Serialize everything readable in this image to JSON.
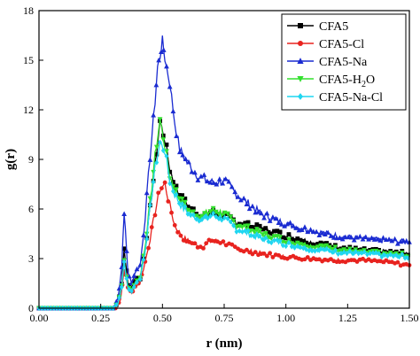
{
  "chart_data": {
    "type": "line",
    "title": "",
    "xlabel": "r (nm)",
    "ylabel": "g(r)",
    "xlim": [
      0,
      1.5
    ],
    "ylim": [
      0,
      18
    ],
    "xticks": [
      0.0,
      0.25,
      0.5,
      0.75,
      1.0,
      1.25,
      1.5
    ],
    "xtick_labels": [
      "0.00",
      "0.25",
      "0.50",
      "0.75",
      "1.00",
      "1.25",
      "1.50"
    ],
    "yticks": [
      0,
      3,
      6,
      9,
      12,
      15,
      18
    ],
    "ytick_labels": [
      "0",
      "3",
      "6",
      "9",
      "12",
      "15",
      "18"
    ],
    "grid": false,
    "legend_position": "top-right",
    "series": [
      {
        "name": "CFA5",
        "name_sub": "",
        "name_tail": "",
        "color": "#000000",
        "marker": "square",
        "points": [
          [
            0.0,
            0
          ],
          [
            0.3,
            0
          ],
          [
            0.32,
            0.3
          ],
          [
            0.335,
            1.5
          ],
          [
            0.345,
            3.6
          ],
          [
            0.36,
            1.5
          ],
          [
            0.375,
            1.2
          ],
          [
            0.39,
            1.9
          ],
          [
            0.41,
            1.8
          ],
          [
            0.43,
            3.6
          ],
          [
            0.45,
            6.0
          ],
          [
            0.47,
            8.6
          ],
          [
            0.49,
            11.3
          ],
          [
            0.51,
            10.2
          ],
          [
            0.53,
            8.4
          ],
          [
            0.55,
            7.4
          ],
          [
            0.58,
            6.6
          ],
          [
            0.62,
            6.0
          ],
          [
            0.66,
            5.6
          ],
          [
            0.7,
            5.8
          ],
          [
            0.74,
            5.7
          ],
          [
            0.8,
            5.2
          ],
          [
            0.9,
            4.8
          ],
          [
            1.0,
            4.4
          ],
          [
            1.1,
            4.0
          ],
          [
            1.2,
            3.7
          ],
          [
            1.3,
            3.5
          ],
          [
            1.4,
            3.4
          ],
          [
            1.5,
            3.3
          ]
        ]
      },
      {
        "name": "CFA5-Cl",
        "name_sub": "",
        "name_tail": "",
        "color": "#e8231f",
        "marker": "circle",
        "points": [
          [
            0.0,
            0
          ],
          [
            0.31,
            0
          ],
          [
            0.33,
            0.5
          ],
          [
            0.345,
            2.4
          ],
          [
            0.36,
            1.3
          ],
          [
            0.375,
            0.9
          ],
          [
            0.39,
            1.3
          ],
          [
            0.41,
            1.6
          ],
          [
            0.43,
            2.8
          ],
          [
            0.45,
            4.2
          ],
          [
            0.47,
            5.8
          ],
          [
            0.49,
            7.2
          ],
          [
            0.51,
            7.5
          ],
          [
            0.53,
            6.2
          ],
          [
            0.55,
            5.0
          ],
          [
            0.58,
            4.3
          ],
          [
            0.62,
            3.9
          ],
          [
            0.66,
            3.7
          ],
          [
            0.7,
            4.1
          ],
          [
            0.74,
            4.0
          ],
          [
            0.8,
            3.6
          ],
          [
            0.9,
            3.3
          ],
          [
            1.0,
            3.1
          ],
          [
            1.1,
            3.0
          ],
          [
            1.2,
            2.9
          ],
          [
            1.3,
            2.9
          ],
          [
            1.4,
            2.8
          ],
          [
            1.5,
            2.6
          ]
        ]
      },
      {
        "name": "CFA5-Na",
        "name_sub": "",
        "name_tail": "",
        "color": "#1a2bd1",
        "marker": "triangle-up",
        "points": [
          [
            0.0,
            0
          ],
          [
            0.3,
            0
          ],
          [
            0.32,
            0.6
          ],
          [
            0.335,
            2.5
          ],
          [
            0.345,
            5.9
          ],
          [
            0.36,
            2.2
          ],
          [
            0.375,
            1.5
          ],
          [
            0.39,
            2.2
          ],
          [
            0.41,
            2.6
          ],
          [
            0.43,
            5.5
          ],
          [
            0.45,
            9.2
          ],
          [
            0.47,
            12.5
          ],
          [
            0.48,
            14.6
          ],
          [
            0.49,
            15.2
          ],
          [
            0.5,
            16.2
          ],
          [
            0.51,
            15.1
          ],
          [
            0.53,
            13.6
          ],
          [
            0.55,
            11.2
          ],
          [
            0.57,
            9.6
          ],
          [
            0.6,
            8.8
          ],
          [
            0.65,
            7.9
          ],
          [
            0.7,
            7.6
          ],
          [
            0.75,
            7.7
          ],
          [
            0.8,
            6.9
          ],
          [
            0.9,
            5.7
          ],
          [
            1.0,
            5.1
          ],
          [
            1.1,
            4.7
          ],
          [
            1.2,
            4.4
          ],
          [
            1.3,
            4.2
          ],
          [
            1.4,
            4.1
          ],
          [
            1.5,
            4.0
          ]
        ]
      },
      {
        "name": "CFA5-H",
        "name_sub": "2",
        "name_tail": "O",
        "color": "#33e02e",
        "marker": "triangle-down",
        "points": [
          [
            0.0,
            0
          ],
          [
            0.3,
            0
          ],
          [
            0.32,
            0.3
          ],
          [
            0.335,
            1.4
          ],
          [
            0.345,
            2.9
          ],
          [
            0.36,
            1.3
          ],
          [
            0.375,
            1.1
          ],
          [
            0.39,
            1.6
          ],
          [
            0.41,
            1.9
          ],
          [
            0.43,
            3.8
          ],
          [
            0.45,
            6.4
          ],
          [
            0.47,
            9.2
          ],
          [
            0.49,
            11.4
          ],
          [
            0.51,
            9.8
          ],
          [
            0.53,
            8.0
          ],
          [
            0.55,
            7.2
          ],
          [
            0.58,
            6.4
          ],
          [
            0.62,
            5.8
          ],
          [
            0.66,
            5.6
          ],
          [
            0.7,
            5.9
          ],
          [
            0.74,
            5.8
          ],
          [
            0.8,
            5.1
          ],
          [
            0.9,
            4.5
          ],
          [
            1.0,
            4.1
          ],
          [
            1.1,
            3.8
          ],
          [
            1.2,
            3.6
          ],
          [
            1.3,
            3.4
          ],
          [
            1.4,
            3.3
          ],
          [
            1.5,
            3.2
          ]
        ]
      },
      {
        "name": "CFA5-Na-Cl",
        "name_sub": "",
        "name_tail": "",
        "color": "#1fd6f0",
        "marker": "diamond",
        "points": [
          [
            0.0,
            0
          ],
          [
            0.3,
            0
          ],
          [
            0.32,
            0.3
          ],
          [
            0.335,
            1.3
          ],
          [
            0.345,
            2.8
          ],
          [
            0.36,
            1.2
          ],
          [
            0.375,
            1.0
          ],
          [
            0.39,
            1.5
          ],
          [
            0.41,
            1.8
          ],
          [
            0.43,
            3.5
          ],
          [
            0.45,
            6.0
          ],
          [
            0.47,
            8.5
          ],
          [
            0.49,
            10.0
          ],
          [
            0.51,
            9.5
          ],
          [
            0.53,
            7.7
          ],
          [
            0.55,
            6.9
          ],
          [
            0.58,
            6.1
          ],
          [
            0.62,
            5.6
          ],
          [
            0.66,
            5.4
          ],
          [
            0.7,
            5.6
          ],
          [
            0.74,
            5.5
          ],
          [
            0.8,
            4.8
          ],
          [
            0.9,
            4.2
          ],
          [
            1.0,
            3.9
          ],
          [
            1.1,
            3.6
          ],
          [
            1.2,
            3.4
          ],
          [
            1.3,
            3.3
          ],
          [
            1.4,
            3.2
          ],
          [
            1.5,
            3.1
          ]
        ]
      }
    ]
  }
}
